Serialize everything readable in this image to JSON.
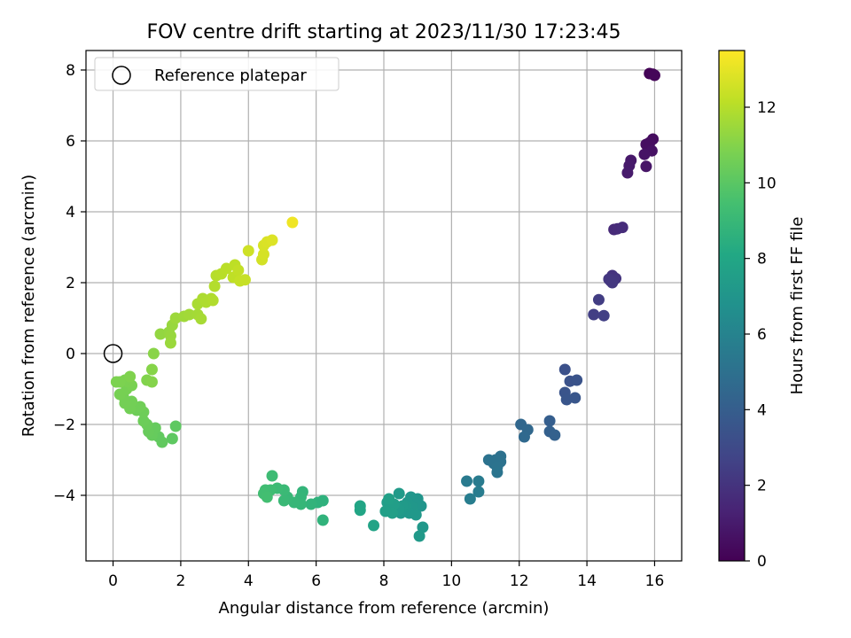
{
  "chart_data": {
    "type": "scatter",
    "title": "FOV centre drift starting at 2023/11/30 17:23:45",
    "xlabel": "Angular distance from reference (arcmin)",
    "ylabel": "Rotation from reference (arcmin)",
    "xlim": [
      -0.8,
      16.8
    ],
    "ylim": [
      -5.85,
      8.55
    ],
    "xticks": [
      0,
      2,
      4,
      6,
      8,
      10,
      12,
      14,
      16
    ],
    "yticks": [
      -4,
      -2,
      0,
      2,
      4,
      6,
      8
    ],
    "grid": true,
    "legend": {
      "position": "top-left",
      "entries": [
        "Reference platepar"
      ]
    },
    "reference": {
      "x": 0,
      "y": 0
    },
    "colorbar": {
      "label": "Hours from first FF file",
      "colormap": "viridis",
      "range": [
        0,
        13.5
      ],
      "ticks": [
        0,
        2,
        4,
        6,
        8,
        10,
        12
      ]
    },
    "points": [
      [
        15.85,
        7.9,
        0.1
      ],
      [
        15.95,
        7.88,
        0.15
      ],
      [
        16.0,
        7.85,
        0.2
      ],
      [
        15.95,
        6.05,
        0.4
      ],
      [
        15.75,
        5.9,
        0.5
      ],
      [
        15.85,
        5.95,
        0.5
      ],
      [
        15.92,
        5.72,
        0.6
      ],
      [
        15.7,
        5.62,
        0.7
      ],
      [
        15.75,
        5.28,
        0.8
      ],
      [
        15.3,
        5.45,
        0.9
      ],
      [
        15.25,
        5.3,
        0.95
      ],
      [
        15.2,
        5.1,
        1.0
      ],
      [
        14.8,
        3.5,
        1.6
      ],
      [
        14.9,
        3.52,
        1.65
      ],
      [
        15.05,
        3.56,
        1.7
      ],
      [
        14.75,
        2.2,
        2.0
      ],
      [
        14.85,
        2.12,
        2.05
      ],
      [
        14.7,
        2.05,
        2.1
      ],
      [
        14.8,
        2.08,
        2.1
      ],
      [
        14.65,
        2.1,
        2.15
      ],
      [
        14.75,
        2.0,
        2.2
      ],
      [
        14.35,
        1.52,
        2.4
      ],
      [
        14.2,
        1.1,
        2.5
      ],
      [
        14.5,
        1.07,
        2.55
      ],
      [
        13.35,
        -0.45,
        3.3
      ],
      [
        13.5,
        -0.78,
        3.4
      ],
      [
        13.7,
        -0.75,
        3.45
      ],
      [
        13.35,
        -1.1,
        3.5
      ],
      [
        13.4,
        -1.3,
        3.55
      ],
      [
        13.65,
        -1.25,
        3.6
      ],
      [
        12.9,
        -1.9,
        4.0
      ],
      [
        12.9,
        -2.2,
        4.1
      ],
      [
        13.05,
        -2.3,
        4.15
      ],
      [
        12.05,
        -2.0,
        4.5
      ],
      [
        12.25,
        -2.15,
        4.55
      ],
      [
        12.15,
        -2.35,
        4.6
      ],
      [
        11.45,
        -2.9,
        5.0
      ],
      [
        11.3,
        -3.0,
        5.05
      ],
      [
        11.45,
        -3.05,
        5.05
      ],
      [
        11.1,
        -3.0,
        5.1
      ],
      [
        11.25,
        -3.1,
        5.1
      ],
      [
        11.35,
        -3.2,
        5.15
      ],
      [
        11.35,
        -3.35,
        5.2
      ],
      [
        10.45,
        -3.6,
        5.5
      ],
      [
        10.8,
        -3.6,
        5.55
      ],
      [
        10.8,
        -3.9,
        5.6
      ],
      [
        10.55,
        -4.1,
        5.65
      ],
      [
        9.1,
        -4.3,
        7.0
      ],
      [
        9.0,
        -4.1,
        7.0
      ],
      [
        8.8,
        -4.05,
        7.05
      ],
      [
        8.95,
        -4.25,
        7.05
      ],
      [
        8.7,
        -4.2,
        7.1
      ],
      [
        8.85,
        -4.35,
        7.1
      ],
      [
        8.6,
        -4.4,
        7.15
      ],
      [
        8.75,
        -4.5,
        7.15
      ],
      [
        8.95,
        -4.55,
        7.2
      ],
      [
        8.5,
        -4.5,
        7.2
      ],
      [
        8.65,
        -4.3,
        7.25
      ],
      [
        8.45,
        -3.95,
        7.3
      ],
      [
        9.15,
        -4.9,
        7.2
      ],
      [
        9.05,
        -5.15,
        7.25
      ],
      [
        8.55,
        -4.3,
        7.3
      ],
      [
        8.45,
        -4.4,
        7.35
      ],
      [
        8.1,
        -4.2,
        7.5
      ],
      [
        8.2,
        -4.35,
        7.55
      ],
      [
        8.3,
        -4.25,
        7.55
      ],
      [
        8.25,
        -4.5,
        7.6
      ],
      [
        8.05,
        -4.45,
        7.6
      ],
      [
        8.15,
        -4.1,
        7.65
      ],
      [
        7.7,
        -4.85,
        7.8
      ],
      [
        7.3,
        -4.3,
        7.9
      ],
      [
        7.3,
        -4.42,
        7.95
      ],
      [
        6.2,
        -4.15,
        8.6
      ],
      [
        6.05,
        -4.2,
        8.65
      ],
      [
        6.2,
        -4.7,
        8.7
      ],
      [
        5.85,
        -4.25,
        8.75
      ],
      [
        5.6,
        -3.9,
        8.8
      ],
      [
        5.55,
        -4.05,
        8.85
      ],
      [
        5.55,
        -4.25,
        8.9
      ],
      [
        5.35,
        -4.2,
        8.95
      ],
      [
        5.15,
        -4.05,
        9.0
      ],
      [
        5.05,
        -4.15,
        9.05
      ],
      [
        5.05,
        -3.85,
        9.1
      ],
      [
        4.85,
        -3.8,
        9.15
      ],
      [
        4.7,
        -3.45,
        9.2
      ],
      [
        4.65,
        -3.85,
        9.25
      ],
      [
        4.5,
        -3.85,
        9.3
      ],
      [
        4.45,
        -3.95,
        9.35
      ],
      [
        4.55,
        -4.05,
        9.4
      ],
      [
        1.85,
        -2.05,
        10.1
      ],
      [
        1.75,
        -2.4,
        10.1
      ],
      [
        1.45,
        -2.5,
        10.2
      ],
      [
        1.35,
        -2.35,
        10.2
      ],
      [
        1.15,
        -2.3,
        10.3
      ],
      [
        1.25,
        -2.1,
        10.3
      ],
      [
        1.05,
        -2.2,
        10.35
      ],
      [
        1.0,
        -2.0,
        10.4
      ],
      [
        0.9,
        -1.9,
        10.45
      ],
      [
        0.9,
        -1.65,
        10.5
      ],
      [
        0.7,
        -1.6,
        10.5
      ],
      [
        0.8,
        -1.5,
        10.55
      ],
      [
        0.5,
        -1.55,
        10.6
      ],
      [
        0.55,
        -1.35,
        10.6
      ],
      [
        0.35,
        -1.4,
        10.65
      ],
      [
        0.3,
        -1.2,
        10.65
      ],
      [
        0.2,
        -1.15,
        10.7
      ],
      [
        0.4,
        -1.0,
        10.7
      ],
      [
        0.55,
        -0.9,
        10.75
      ],
      [
        0.45,
        -0.8,
        10.8
      ],
      [
        0.35,
        -0.75,
        10.8
      ],
      [
        0.2,
        -0.8,
        10.85
      ],
      [
        0.1,
        -0.8,
        10.85
      ],
      [
        0.5,
        -0.65,
        10.9
      ],
      [
        1.0,
        -0.75,
        10.95
      ],
      [
        1.15,
        -0.8,
        11.0
      ],
      [
        1.15,
        -0.45,
        11.05
      ],
      [
        1.2,
        0.0,
        11.1
      ],
      [
        1.4,
        0.55,
        11.3
      ],
      [
        1.65,
        0.6,
        11.35
      ],
      [
        1.75,
        0.8,
        11.4
      ],
      [
        1.7,
        0.5,
        11.4
      ],
      [
        1.7,
        0.3,
        11.45
      ],
      [
        1.85,
        1.0,
        11.5
      ],
      [
        2.1,
        1.05,
        11.55
      ],
      [
        2.25,
        1.1,
        11.6
      ],
      [
        2.5,
        1.1,
        11.65
      ],
      [
        2.6,
        0.98,
        11.7
      ],
      [
        2.5,
        1.4,
        11.75
      ],
      [
        2.65,
        1.55,
        11.8
      ],
      [
        2.9,
        1.55,
        11.85
      ],
      [
        2.75,
        1.45,
        11.85
      ],
      [
        2.95,
        1.5,
        11.9
      ],
      [
        3.0,
        1.9,
        11.95
      ],
      [
        3.05,
        2.2,
        12.0
      ],
      [
        3.2,
        2.25,
        12.05
      ],
      [
        3.35,
        2.4,
        12.1
      ],
      [
        3.6,
        2.5,
        12.15
      ],
      [
        3.55,
        2.15,
        12.2
      ],
      [
        3.7,
        2.35,
        12.25
      ],
      [
        3.75,
        2.05,
        12.3
      ],
      [
        3.9,
        2.08,
        12.35
      ],
      [
        4.0,
        2.9,
        12.5
      ],
      [
        4.4,
        2.65,
        12.6
      ],
      [
        4.45,
        2.8,
        12.65
      ],
      [
        4.45,
        3.05,
        12.7
      ],
      [
        4.55,
        3.15,
        12.75
      ],
      [
        4.7,
        3.2,
        12.8
      ],
      [
        5.3,
        3.7,
        13.2
      ]
    ]
  }
}
